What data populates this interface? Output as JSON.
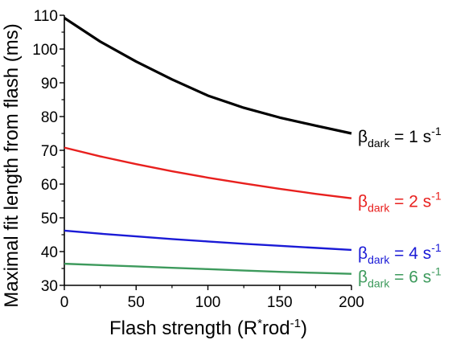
{
  "chart_data": {
    "type": "line",
    "xlabel": {
      "prefix": "Flash strength (R",
      "sup": "*",
      "mid": "rod",
      "sup2": "-1",
      "suffix": ")"
    },
    "ylabel": "Maximal fit length from flash (ms)",
    "xlim": [
      0,
      200
    ],
    "ylim": [
      30,
      110
    ],
    "xticks": [
      0,
      50,
      100,
      150,
      200
    ],
    "yticks": [
      30,
      40,
      50,
      60,
      70,
      80,
      90,
      100,
      110
    ],
    "grid": false,
    "series": [
      {
        "name": "βdark = 1 s-1",
        "label_parts": {
          "base": "β",
          "sub": "dark",
          "text": " = 1 s",
          "sup": "-1"
        },
        "color": "#000000",
        "x": [
          0,
          25,
          50,
          75,
          100,
          125,
          150,
          175,
          200
        ],
        "y": [
          109.2,
          102.2,
          96.3,
          91.0,
          86.2,
          82.6,
          79.7,
          77.3,
          75.0
        ]
      },
      {
        "name": "βdark = 2 s-1",
        "label_parts": {
          "base": "β",
          "sub": "dark",
          "text": " = 2 s",
          "sup": "-1"
        },
        "color": "#e8201e",
        "x": [
          0,
          25,
          50,
          75,
          100,
          125,
          150,
          175,
          200
        ],
        "y": [
          70.8,
          68.2,
          65.9,
          63.8,
          61.9,
          60.2,
          58.6,
          57.1,
          55.8
        ]
      },
      {
        "name": "βdark = 4 s-1",
        "label_parts": {
          "base": "β",
          "sub": "dark",
          "text": " = 4 s",
          "sup": "-1"
        },
        "color": "#1a1ad6",
        "x": [
          0,
          25,
          50,
          75,
          100,
          125,
          150,
          175,
          200
        ],
        "y": [
          46.2,
          45.3,
          44.5,
          43.7,
          43.0,
          42.3,
          41.7,
          41.1,
          40.5
        ]
      },
      {
        "name": "βdark = 6 s-1",
        "label_parts": {
          "base": "β",
          "sub": "dark",
          "text": " = 6 s",
          "sup": "-1"
        },
        "color": "#3d9a5c",
        "x": [
          0,
          25,
          50,
          75,
          100,
          125,
          150,
          175,
          200
        ],
        "y": [
          36.4,
          36.0,
          35.6,
          35.2,
          34.8,
          34.4,
          34.0,
          33.7,
          33.4
        ]
      }
    ]
  }
}
